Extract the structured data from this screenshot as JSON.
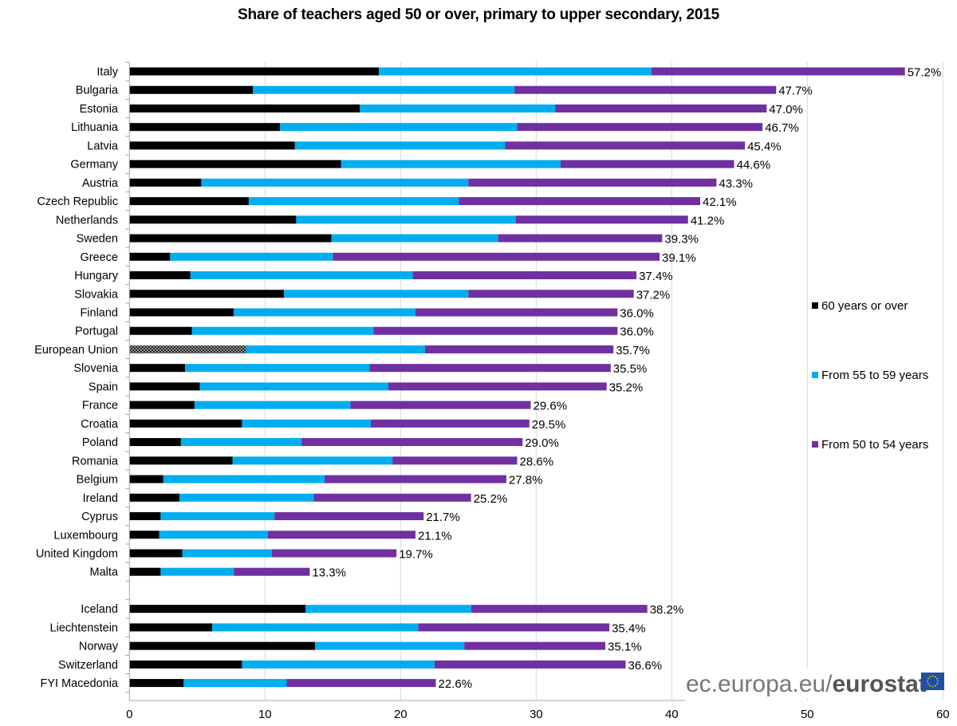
{
  "chart_data": {
    "type": "bar",
    "orientation": "horizontal",
    "stacked": true,
    "title": "Share of teachers aged 50 or over, primary to upper secondary, 2015",
    "xlabel": "",
    "ylabel": "",
    "xlim": [
      0,
      60
    ],
    "x_ticks": [
      "0",
      "10",
      "20",
      "30",
      "40",
      "50",
      "60"
    ],
    "grid": "vertical",
    "legend_position": "right",
    "categories": [
      "Italy",
      "Bulgaria",
      "Estonia",
      "Lithuania",
      "Latvia",
      "Germany",
      "Austria",
      "Czech Republic",
      "Netherlands",
      "Sweden",
      "Greece",
      "Hungary",
      "Slovakia",
      "Finland",
      "Portugal",
      "European Union",
      "Slovenia",
      "Spain",
      "France",
      "Croatia",
      "Poland",
      "Romania",
      "Belgium",
      "Ireland",
      "Cyprus",
      "Luxembourg",
      "United Kingdom",
      "Malta",
      "",
      "Iceland",
      "Liechtenstein",
      "Norway",
      "Switzerland",
      "FYI Macedonia"
    ],
    "series": [
      {
        "name": "60 years or over",
        "color": "#000000",
        "values": [
          18.4,
          9.1,
          17.0,
          11.1,
          12.2,
          15.6,
          5.3,
          8.8,
          12.3,
          14.9,
          3.0,
          4.5,
          11.4,
          7.7,
          4.6,
          8.6,
          4.1,
          5.2,
          4.8,
          8.3,
          3.8,
          7.6,
          2.5,
          3.7,
          2.3,
          2.2,
          3.9,
          2.3,
          null,
          13.0,
          6.1,
          13.7,
          8.3,
          4.0
        ]
      },
      {
        "name": "From 55 to 59 years",
        "color": "#00aeef",
        "values": [
          20.1,
          19.3,
          14.4,
          17.5,
          15.5,
          16.2,
          19.7,
          15.5,
          16.2,
          12.3,
          12.0,
          16.4,
          13.6,
          13.4,
          13.4,
          13.2,
          13.6,
          13.9,
          11.5,
          9.5,
          8.9,
          11.8,
          11.9,
          9.9,
          8.4,
          8.0,
          6.6,
          5.4,
          null,
          12.2,
          15.2,
          11.0,
          14.2,
          7.6
        ]
      },
      {
        "name": "From 50 to 54 years",
        "color": "#7030a0",
        "values": [
          18.7,
          19.3,
          15.6,
          18.1,
          17.7,
          12.8,
          18.3,
          17.8,
          12.7,
          12.1,
          24.1,
          16.5,
          12.2,
          14.9,
          18.0,
          13.9,
          17.8,
          16.1,
          13.3,
          11.7,
          16.3,
          9.2,
          13.4,
          11.6,
          11.0,
          10.9,
          9.2,
          5.6,
          null,
          13.0,
          14.1,
          10.4,
          14.1,
          11.0
        ]
      }
    ],
    "totals": [
      57.2,
      47.7,
      47.0,
      46.7,
      45.4,
      44.6,
      43.3,
      42.1,
      41.2,
      39.3,
      39.1,
      37.4,
      37.2,
      36.0,
      36.0,
      35.7,
      35.5,
      35.2,
      29.6,
      29.5,
      29.0,
      28.6,
      27.8,
      25.2,
      21.7,
      21.1,
      19.7,
      13.3,
      null,
      38.2,
      35.4,
      35.1,
      36.6,
      22.6
    ],
    "total_labels": [
      "57.2%",
      "47.7%",
      "47.0%",
      "46.7%",
      "45.4%",
      "44.6%",
      "43.3%",
      "42.1%",
      "41.2%",
      "39.3%",
      "39.1%",
      "37.4%",
      "37.2%",
      "36.0%",
      "36.0%",
      "35.7%",
      "35.5%",
      "35.2%",
      "29.6%",
      "29.5%",
      "29.0%",
      "28.6%",
      "27.8%",
      "25.2%",
      "21.7%",
      "21.1%",
      "19.7%",
      "13.3%",
      "",
      "38.2%",
      "35.4%",
      "35.1%",
      "36.6%",
      "22.6%"
    ],
    "hatched_category": "European Union"
  },
  "legend": [
    {
      "label": "60 years or over",
      "color": "#000000"
    },
    {
      "label": "From 55 to 59 years",
      "color": "#00aeef"
    },
    {
      "label": "From 50 to 54 years",
      "color": "#7030a0"
    }
  ],
  "logo": {
    "prefix": "ec.europa.eu/",
    "brand": "eurostat",
    "flag_color": "#1f4fa3",
    "star_color": "#ffdd00"
  }
}
